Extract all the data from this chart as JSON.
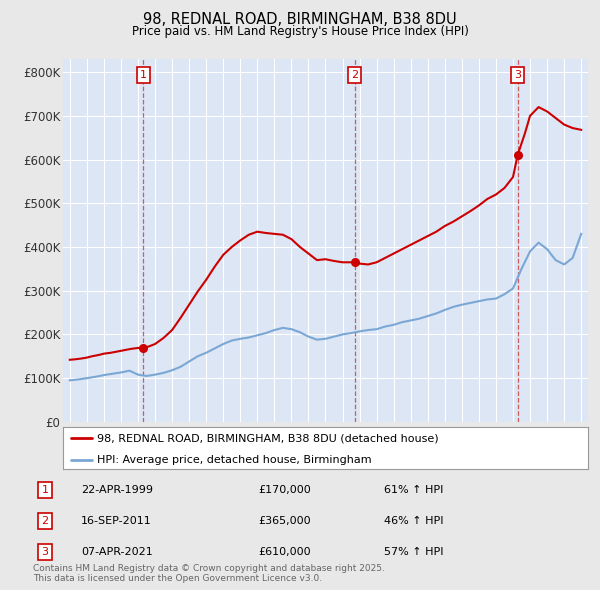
{
  "title": "98, REDNAL ROAD, BIRMINGHAM, B38 8DU",
  "subtitle": "Price paid vs. HM Land Registry's House Price Index (HPI)",
  "red_label": "98, REDNAL ROAD, BIRMINGHAM, B38 8DU (detached house)",
  "blue_label": "HPI: Average price, detached house, Birmingham",
  "ylim": [
    0,
    830000
  ],
  "yticks": [
    0,
    100000,
    200000,
    300000,
    400000,
    500000,
    600000,
    700000,
    800000
  ],
  "ytick_labels": [
    "£0",
    "£100K",
    "£200K",
    "£300K",
    "£400K",
    "£500K",
    "£600K",
    "£700K",
    "£800K"
  ],
  "xlim_start": 1994.6,
  "xlim_end": 2025.4,
  "sale_points": [
    {
      "id": 1,
      "year": 1999.31,
      "price": 170000,
      "date": "22-APR-1999",
      "pct": "61% ↑ HPI"
    },
    {
      "id": 2,
      "year": 2011.71,
      "price": 365000,
      "date": "16-SEP-2011",
      "pct": "46% ↑ HPI"
    },
    {
      "id": 3,
      "year": 2021.27,
      "price": 610000,
      "date": "07-APR-2021",
      "pct": "57% ↑ HPI"
    }
  ],
  "red_color": "#cc0000",
  "blue_color": "#7ba7d4",
  "vline_color": "#cc4444",
  "background_color": "#e8e8e8",
  "plot_bg": "#dce6f5",
  "title_color": "#000000",
  "grid_color": "#ffffff",
  "footer_text": "Contains HM Land Registry data © Crown copyright and database right 2025.\nThis data is licensed under the Open Government Licence v3.0.",
  "hpi_x": [
    1995.0,
    1995.5,
    1996.0,
    1996.5,
    1997.0,
    1997.5,
    1998.0,
    1998.5,
    1999.0,
    1999.5,
    2000.0,
    2000.5,
    2001.0,
    2001.5,
    2002.0,
    2002.5,
    2003.0,
    2003.5,
    2004.0,
    2004.5,
    2005.0,
    2005.5,
    2006.0,
    2006.5,
    2007.0,
    2007.5,
    2008.0,
    2008.5,
    2009.0,
    2009.5,
    2010.0,
    2010.5,
    2011.0,
    2011.5,
    2012.0,
    2012.5,
    2013.0,
    2013.5,
    2014.0,
    2014.5,
    2015.0,
    2015.5,
    2016.0,
    2016.5,
    2017.0,
    2017.5,
    2018.0,
    2018.5,
    2019.0,
    2019.5,
    2020.0,
    2020.5,
    2021.0,
    2021.5,
    2022.0,
    2022.5,
    2023.0,
    2023.5,
    2024.0,
    2024.5,
    2025.0
  ],
  "hpi_y": [
    95000,
    97000,
    100000,
    103000,
    107000,
    110000,
    113000,
    117000,
    108000,
    105000,
    108000,
    112000,
    118000,
    126000,
    138000,
    150000,
    158000,
    168000,
    178000,
    186000,
    190000,
    193000,
    198000,
    203000,
    210000,
    215000,
    212000,
    205000,
    195000,
    188000,
    190000,
    195000,
    200000,
    203000,
    207000,
    210000,
    212000,
    218000,
    222000,
    228000,
    232000,
    236000,
    242000,
    248000,
    256000,
    263000,
    268000,
    272000,
    276000,
    280000,
    282000,
    292000,
    305000,
    350000,
    390000,
    410000,
    395000,
    370000,
    360000,
    375000,
    430000
  ],
  "red_x": [
    1995.0,
    1995.3,
    1995.7,
    1996.0,
    1996.3,
    1996.7,
    1997.0,
    1997.4,
    1997.8,
    1998.2,
    1998.6,
    1999.0,
    1999.31,
    1999.6,
    2000.0,
    2000.5,
    2001.0,
    2001.5,
    2002.0,
    2002.5,
    2003.0,
    2003.5,
    2004.0,
    2004.5,
    2005.0,
    2005.5,
    2006.0,
    2006.5,
    2007.0,
    2007.5,
    2008.0,
    2008.5,
    2009.0,
    2009.5,
    2010.0,
    2010.5,
    2011.0,
    2011.71,
    2012.0,
    2012.5,
    2013.0,
    2013.5,
    2014.0,
    2014.5,
    2015.0,
    2015.5,
    2016.0,
    2016.5,
    2017.0,
    2017.5,
    2018.0,
    2018.5,
    2019.0,
    2019.5,
    2020.0,
    2020.5,
    2021.0,
    2021.27,
    2021.7,
    2022.0,
    2022.5,
    2023.0,
    2023.5,
    2024.0,
    2024.5,
    2025.0
  ],
  "red_y": [
    142000,
    143000,
    145000,
    147000,
    150000,
    153000,
    156000,
    158000,
    161000,
    164000,
    167000,
    169000,
    170000,
    172000,
    178000,
    192000,
    210000,
    238000,
    268000,
    298000,
    325000,
    355000,
    382000,
    400000,
    415000,
    428000,
    435000,
    432000,
    430000,
    428000,
    418000,
    400000,
    385000,
    370000,
    372000,
    368000,
    365000,
    365000,
    362000,
    360000,
    365000,
    375000,
    385000,
    395000,
    405000,
    415000,
    425000,
    435000,
    448000,
    458000,
    470000,
    482000,
    495000,
    510000,
    520000,
    535000,
    560000,
    610000,
    660000,
    700000,
    720000,
    710000,
    695000,
    680000,
    672000,
    668000
  ]
}
